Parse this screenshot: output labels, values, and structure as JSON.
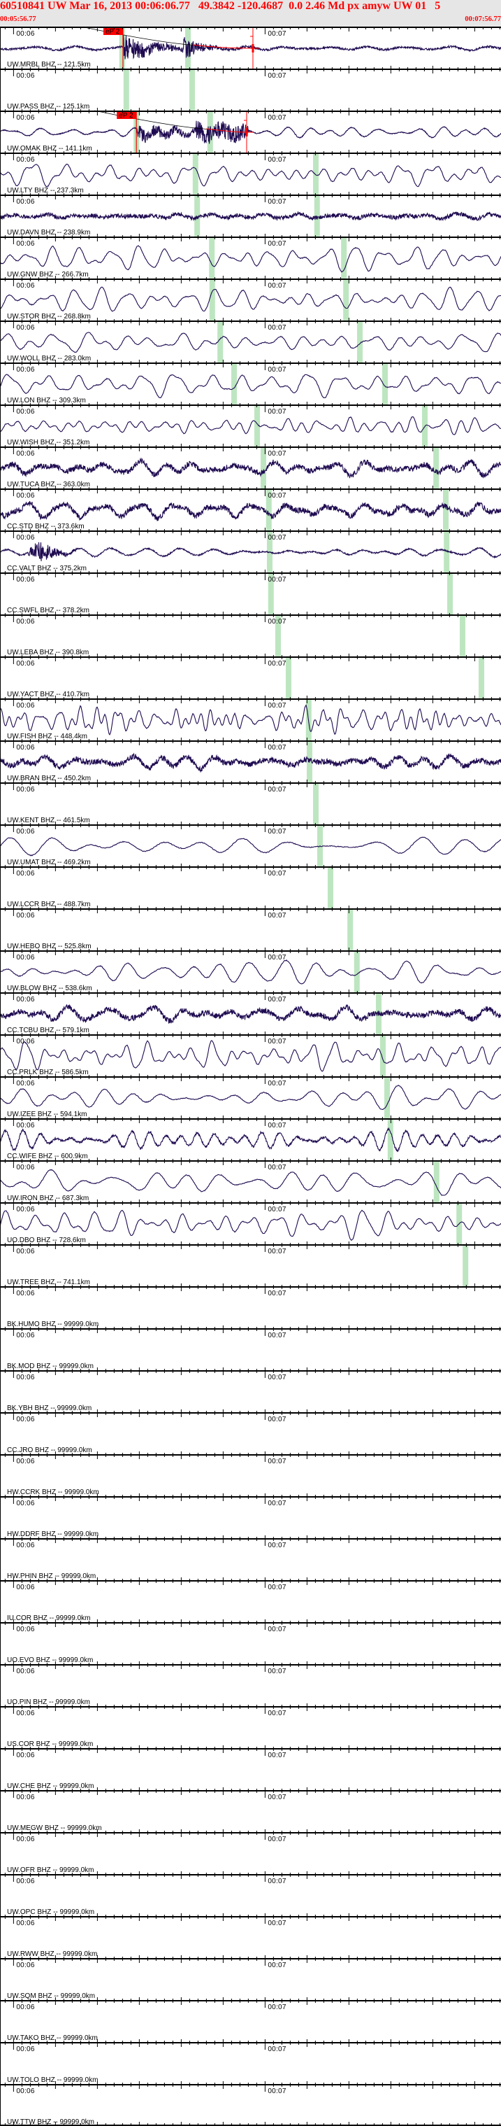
{
  "header": {
    "title": "60510841 UW Mar 16, 2013 00:06:06.77   49.3842 -120.4687  0.0 2.46 Md px amyw UW 01   5",
    "start_time": "00:05:56.77",
    "end_time": "00:07:56.77"
  },
  "time_labels": [
    "00:06",
    "00:07"
  ],
  "colors": {
    "header_text": "#ff0000",
    "header_background": "#e6e6e6",
    "waveform": "#1e0a50",
    "predicted_arrival": "#bde6c0",
    "pick": "#ff0000",
    "axis": "#000000"
  },
  "traces": [
    {
      "label": "UW.MRBL BHZ -- 121.5km",
      "has_data": true,
      "P": "00:06:25.9",
      "S": "00:06:41.6",
      "pick": {
        "phase": "eP 2",
        "time": "00:06:26.1",
        "coda_end": "00:06:57.1"
      }
    },
    {
      "label": "UW.PASS BHZ -- 125.1km",
      "has_data": false,
      "P": "00:06:26.9",
      "S": "00:06:42.6"
    },
    {
      "label": "UW.OMAK BHZ -- 141.1km",
      "has_data": true,
      "P": "00:06:29.3",
      "S": "00:06:46.9",
      "pick": {
        "phase": "eP 2",
        "time": "00:06:29.3",
        "coda_end": "00:06:55.6"
      }
    },
    {
      "label": "UW.LTY BHZ -- 237.3km",
      "has_data": true,
      "P": "00:06:43.4",
      "S": "00:07:12.1"
    },
    {
      "label": "UW.DAVN BHZ -- 238.9km",
      "has_data": true,
      "P": "00:06:43.8",
      "S": "00:07:12.4"
    },
    {
      "label": "UW.GNW BHZ -- 266.7km",
      "has_data": true,
      "P": "00:06:47.3",
      "S": "00:07:18.8"
    },
    {
      "label": "UW.STOR BHZ -- 268.8km",
      "has_data": true,
      "P": "00:06:47.4",
      "S": "00:07:19.3"
    },
    {
      "label": "UW.WOLL BHZ -- 283.0km",
      "has_data": true,
      "P": "00:06:49.3",
      "S": "00:07:22.6"
    },
    {
      "label": "UW.LON BHZ -- 309.3km",
      "has_data": true,
      "P": "00:06:52.6",
      "S": "00:07:28.6"
    },
    {
      "label": "UW.WISH BHZ -- 351.2km",
      "has_data": true,
      "P": "00:06:58.1",
      "S": "00:07:38.1"
    },
    {
      "label": "UW.TUCA BHZ -- 363.0km",
      "has_data": true,
      "P": "00:06:59.6",
      "S": "00:07:40.8"
    },
    {
      "label": "CC.STD BHZ -- 373.6km",
      "has_data": true,
      "P": "00:07:00.9",
      "S": "00:07:43.1"
    },
    {
      "label": "CC.VALT BHZ -- 375.2km",
      "has_data": true,
      "P": "00:07:01.1",
      "S": "00:07:43.3"
    },
    {
      "label": "CC.SWFL BHZ -- 378.2km",
      "has_data": false,
      "P": "00:07:01.4",
      "S": "00:07:44.1"
    },
    {
      "label": "UW.LEBA BHZ -- 390.8km",
      "has_data": false,
      "P": "00:07:03.1",
      "S": "00:07:47.1"
    },
    {
      "label": "UW.YACT BHZ -- 410.7km",
      "has_data": false,
      "P": "00:07:05.6",
      "S": "00:07:51.6"
    },
    {
      "label": "UW.FISH BHZ -- 448.4km",
      "has_data": true,
      "P": "00:07:10.4"
    },
    {
      "label": "UW.BRAN BHZ -- 450.2km",
      "has_data": true,
      "P": "00:07:10.6"
    },
    {
      "label": "UW.KENT BHZ -- 461.5km",
      "has_data": false,
      "P": "00:07:12.1"
    },
    {
      "label": "UW.UMAT BHZ -- 469.2km",
      "has_data": true,
      "P": "00:07:13.1"
    },
    {
      "label": "UW.LCCR BHZ -- 488.7km",
      "has_data": false,
      "P": "00:07:15.6"
    },
    {
      "label": "UW.HEBO BHZ -- 525.8km",
      "has_data": false,
      "P": "00:07:20.3"
    },
    {
      "label": "UW.BLOW BHZ -- 538.6km",
      "has_data": true,
      "P": "00:07:21.9"
    },
    {
      "label": "CC.TCBU BHZ -- 579.1km",
      "has_data": true,
      "P": "00:07:27.1"
    },
    {
      "label": "CC.PRLK BHZ -- 586.5km",
      "has_data": true,
      "P": "00:07:28.1"
    },
    {
      "label": "UW.IZEE BHZ -- 594.1km",
      "has_data": true,
      "P": "00:07:29.1"
    },
    {
      "label": "CC.WIFE BHZ -- 600.9km",
      "has_data": true,
      "P": "00:07:29.9"
    },
    {
      "label": "UW.IRON BHZ -- 687.3km",
      "has_data": true,
      "P": "00:07:40.9"
    },
    {
      "label": "UO.DBO BHZ -- 728.6km",
      "has_data": true,
      "P": "00:07:46.3"
    },
    {
      "label": "UW.TREE BHZ -- 741.1km",
      "has_data": false,
      "P": "00:07:47.8"
    },
    {
      "label": "BK.HUMO BHZ -- 99999.0km",
      "has_data": false
    },
    {
      "label": "BK.MOD BHZ -- 99999.0km",
      "has_data": false
    },
    {
      "label": "BK.YBH BHZ -- 99999.0km",
      "has_data": false
    },
    {
      "label": "CC.JRO BHZ -- 99999.0km",
      "has_data": false
    },
    {
      "label": "HW.CCRK BHZ -- 99999.0km",
      "has_data": false
    },
    {
      "label": "HW.DDRF BHZ -- 99999.0km",
      "has_data": false
    },
    {
      "label": "HW.PHIN BHZ -- 99999.0km",
      "has_data": false
    },
    {
      "label": "IU.COR BHZ -- 99999.0km",
      "has_data": false
    },
    {
      "label": "UO.EVO BHZ -- 99999.0km",
      "has_data": false
    },
    {
      "label": "UO.PIN BHZ -- 99999.0km",
      "has_data": false
    },
    {
      "label": "US.COR BHZ -- 99999.0km",
      "has_data": false
    },
    {
      "label": "UW.CHE BHZ -- 99999.0km",
      "has_data": false
    },
    {
      "label": "UW.MEGW BHZ -- 99999.0km",
      "has_data": false
    },
    {
      "label": "UW.OFR BHZ -- 99999.0km",
      "has_data": false
    },
    {
      "label": "UW.OPC BHZ -- 99999.0km",
      "has_data": false
    },
    {
      "label": "UW.RWW BHZ -- 99999.0km",
      "has_data": false
    },
    {
      "label": "UW.SQM BHZ -- 99999.0km",
      "has_data": false
    },
    {
      "label": "UW.TAKO BHZ -- 99999.0km",
      "has_data": false
    },
    {
      "label": "UW.TOLO BHZ -- 99999.0km",
      "has_data": false
    },
    {
      "label": "UW.TTW BHZ -- 99999.0km",
      "has_data": false
    }
  ]
}
